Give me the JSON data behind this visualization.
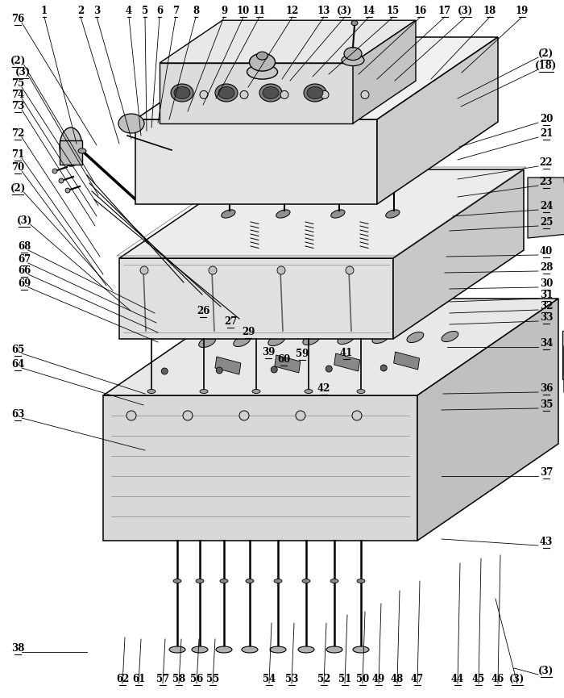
{
  "bg_color": "#ffffff",
  "line_color": "#000000",
  "font_size": 8.5,
  "top_labels": {
    "labels": [
      "1",
      "2",
      "3",
      "4",
      "5",
      "6",
      "7",
      "8",
      "9",
      "10",
      "11",
      "12",
      "13",
      "(3)",
      "14",
      "15",
      "16",
      "17",
      "(3)",
      "18",
      "19"
    ],
    "x": [
      55,
      100,
      120,
      160,
      180,
      198,
      218,
      243,
      278,
      302,
      322,
      363,
      402,
      428,
      458,
      488,
      522,
      552,
      578,
      608,
      648
    ],
    "tip_x": [
      95,
      148,
      163,
      175,
      182,
      188,
      196,
      210,
      233,
      252,
      268,
      308,
      350,
      360,
      388,
      408,
      445,
      468,
      490,
      535,
      573
    ],
    "tip_y": [
      178,
      178,
      172,
      168,
      162,
      158,
      152,
      148,
      138,
      130,
      122,
      108,
      98,
      100,
      95,
      92,
      92,
      98,
      100,
      98,
      90
    ]
  },
  "left_labels": {
    "labels": [
      "76",
      "(2)",
      "(3)",
      "75",
      "74",
      "73",
      "72",
      "71",
      "70",
      "(2)",
      "(3)",
      "68",
      "67",
      "66",
      "69",
      "65",
      "64",
      "63",
      "38"
    ],
    "y": [
      30,
      82,
      96,
      110,
      124,
      138,
      172,
      198,
      214,
      240,
      280,
      312,
      328,
      342,
      358,
      440,
      458,
      520,
      810
    ],
    "lx": [
      22,
      22,
      28,
      22,
      22,
      22,
      22,
      22,
      22,
      22,
      30,
      30,
      30,
      30,
      30,
      22,
      22,
      22,
      22
    ],
    "tip_x": [
      120,
      118,
      122,
      122,
      120,
      118,
      124,
      128,
      132,
      140,
      162,
      192,
      194,
      196,
      196,
      180,
      178,
      180,
      108
    ],
    "tip_y": [
      180,
      228,
      242,
      255,
      268,
      280,
      318,
      340,
      354,
      360,
      385,
      388,
      400,
      412,
      424,
      488,
      502,
      558,
      808
    ]
  },
  "right_labels": {
    "labels": [
      "(2)",
      "(18)",
      "20",
      "21",
      "22",
      "23",
      "24",
      "25",
      "40",
      "28",
      "30",
      "31",
      "32",
      "33",
      "34",
      "36",
      "35",
      "37",
      "43",
      "(3)"
    ],
    "y": [
      73,
      88,
      154,
      172,
      208,
      232,
      262,
      282,
      318,
      338,
      358,
      372,
      386,
      400,
      432,
      488,
      508,
      592,
      678,
      838
    ],
    "tip_x": [
      568,
      572,
      570,
      568,
      568,
      568,
      562,
      558,
      554,
      552,
      558,
      558,
      558,
      558,
      555,
      550,
      548,
      548,
      548,
      638
    ],
    "tip_y": [
      122,
      132,
      182,
      198,
      222,
      244,
      268,
      286,
      318,
      338,
      358,
      374,
      388,
      402,
      430,
      488,
      508,
      590,
      668,
      828
    ]
  },
  "bottom_labels": {
    "labels": [
      "62",
      "61",
      "57",
      "58",
      "56",
      "55",
      "54",
      "53",
      "52",
      "51",
      "50",
      "49",
      "48",
      "47",
      "44",
      "45",
      "46",
      "(3)"
    ],
    "x": [
      152,
      172,
      202,
      222,
      244,
      264,
      334,
      362,
      402,
      428,
      450,
      470,
      493,
      518,
      568,
      594,
      618,
      642
    ],
    "tip_x": [
      155,
      175,
      205,
      225,
      247,
      267,
      337,
      365,
      405,
      431,
      453,
      473,
      496,
      521,
      571,
      597,
      621,
      615
    ],
    "tip_y": [
      790,
      792,
      792,
      792,
      792,
      792,
      772,
      772,
      772,
      762,
      758,
      748,
      732,
      720,
      698,
      692,
      688,
      742
    ]
  },
  "inner_labels": {
    "labels": [
      "26",
      "27",
      "29",
      "39",
      "60",
      "59",
      "41",
      "42"
    ],
    "x": [
      252,
      286,
      308,
      333,
      352,
      375,
      430,
      402
    ],
    "y": [
      392,
      405,
      418,
      443,
      452,
      445,
      444,
      488
    ]
  }
}
